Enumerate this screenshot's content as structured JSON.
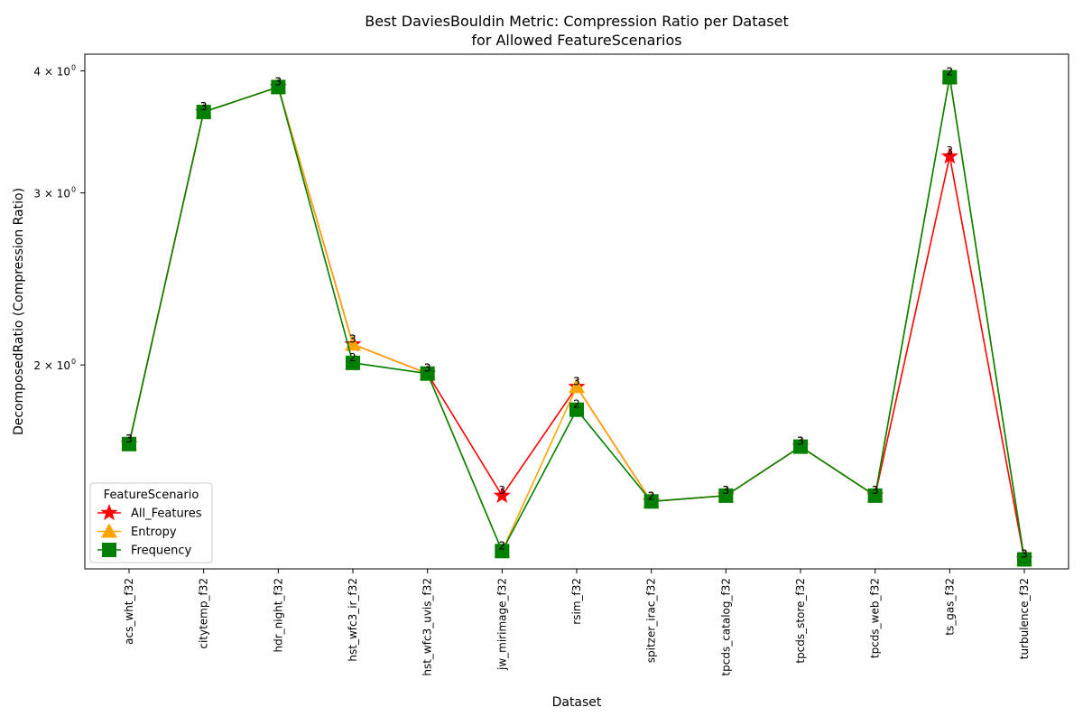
{
  "chart_data": {
    "type": "line",
    "title": "Best DaviesBouldin Metric: Compression Ratio per Dataset",
    "subtitle": "for Allowed FeatureScenarios",
    "xlabel": "Dataset",
    "ylabel": "DecomposedRatio (Compression Ratio)",
    "y_scale": "log",
    "ylim": [
      1.237,
      4.16
    ],
    "y_ticks": [
      {
        "value": 2,
        "label": "2 × 10",
        "exp": "0"
      },
      {
        "value": 3,
        "label": "3 × 10",
        "exp": "0"
      },
      {
        "value": 4,
        "label": "4 × 10",
        "exp": "0"
      }
    ],
    "categories": [
      "acs_wht_f32",
      "citytemp_f32",
      "hdr_night_f32",
      "hst_wfc3_ir_f32",
      "hst_wfc3_uvis_f32",
      "jw_mirimage_f32",
      "rsim_f32",
      "spitzer_irac_f32",
      "tpcds_catalog_f32",
      "tpcds_store_f32",
      "tpcds_web_f32",
      "ts_gas_f32",
      "turbulence_f32"
    ],
    "legend": {
      "title": "FeatureScenario",
      "placement": "lower-left"
    },
    "grid": false,
    "series": [
      {
        "name": "All_Features",
        "color": "#ff0000",
        "marker": "star",
        "values": [
          1.66,
          3.63,
          3.85,
          2.1,
          1.96,
          1.47,
          1.9,
          1.45,
          1.47,
          1.65,
          1.47,
          3.27,
          1.265
        ],
        "labels": [
          "3",
          "3",
          "3",
          "3",
          "3",
          "3",
          "3",
          "2",
          "3",
          "3",
          "3",
          "3",
          "3"
        ]
      },
      {
        "name": "Entropy",
        "color": "#ffa500",
        "marker": "triangle",
        "values": [
          1.66,
          3.63,
          3.85,
          2.1,
          1.96,
          1.29,
          1.9,
          1.45,
          1.47,
          1.65,
          1.47,
          3.94,
          1.265
        ],
        "labels": [
          "3",
          "3",
          "3",
          "3",
          "3",
          "2",
          "3",
          "2",
          "3",
          "3",
          "3",
          "2",
          "3"
        ]
      },
      {
        "name": "Frequency",
        "color": "#008000",
        "marker": "square",
        "values": [
          1.66,
          3.63,
          3.85,
          2.01,
          1.96,
          1.29,
          1.8,
          1.45,
          1.47,
          1.65,
          1.47,
          3.94,
          1.265
        ],
        "labels": [
          "3",
          "3",
          "3",
          "2",
          "3",
          "2",
          "2",
          "2",
          "3",
          "3",
          "3",
          "2",
          "3"
        ]
      }
    ]
  }
}
